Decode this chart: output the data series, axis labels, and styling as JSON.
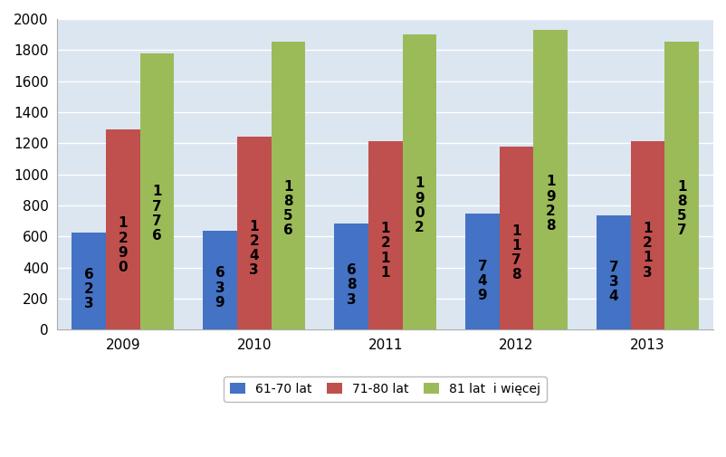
{
  "years": [
    "2009",
    "2010",
    "2011",
    "2012",
    "2013"
  ],
  "series": {
    "61-70 lat": [
      623,
      639,
      683,
      749,
      734
    ],
    "71-80 lat": [
      1290,
      1243,
      1211,
      1178,
      1213
    ],
    "81 lat  i więcej": [
      1776,
      1856,
      1902,
      1928,
      1857
    ]
  },
  "bar_colors": {
    "61-70 lat": "#4472c4",
    "71-80 lat": "#c0504d",
    "81 lat  i więcej": "#9bbb59"
  },
  "ylim": [
    0,
    2000
  ],
  "yticks": [
    0,
    200,
    400,
    600,
    800,
    1000,
    1200,
    1400,
    1600,
    1800,
    2000
  ],
  "background_color": "#ffffff",
  "plot_bg_color": "#dce6f1",
  "grid_color": "#ffffff",
  "bar_width": 0.26,
  "label_fontsize": 11,
  "tick_fontsize": 11,
  "legend_fontsize": 10
}
